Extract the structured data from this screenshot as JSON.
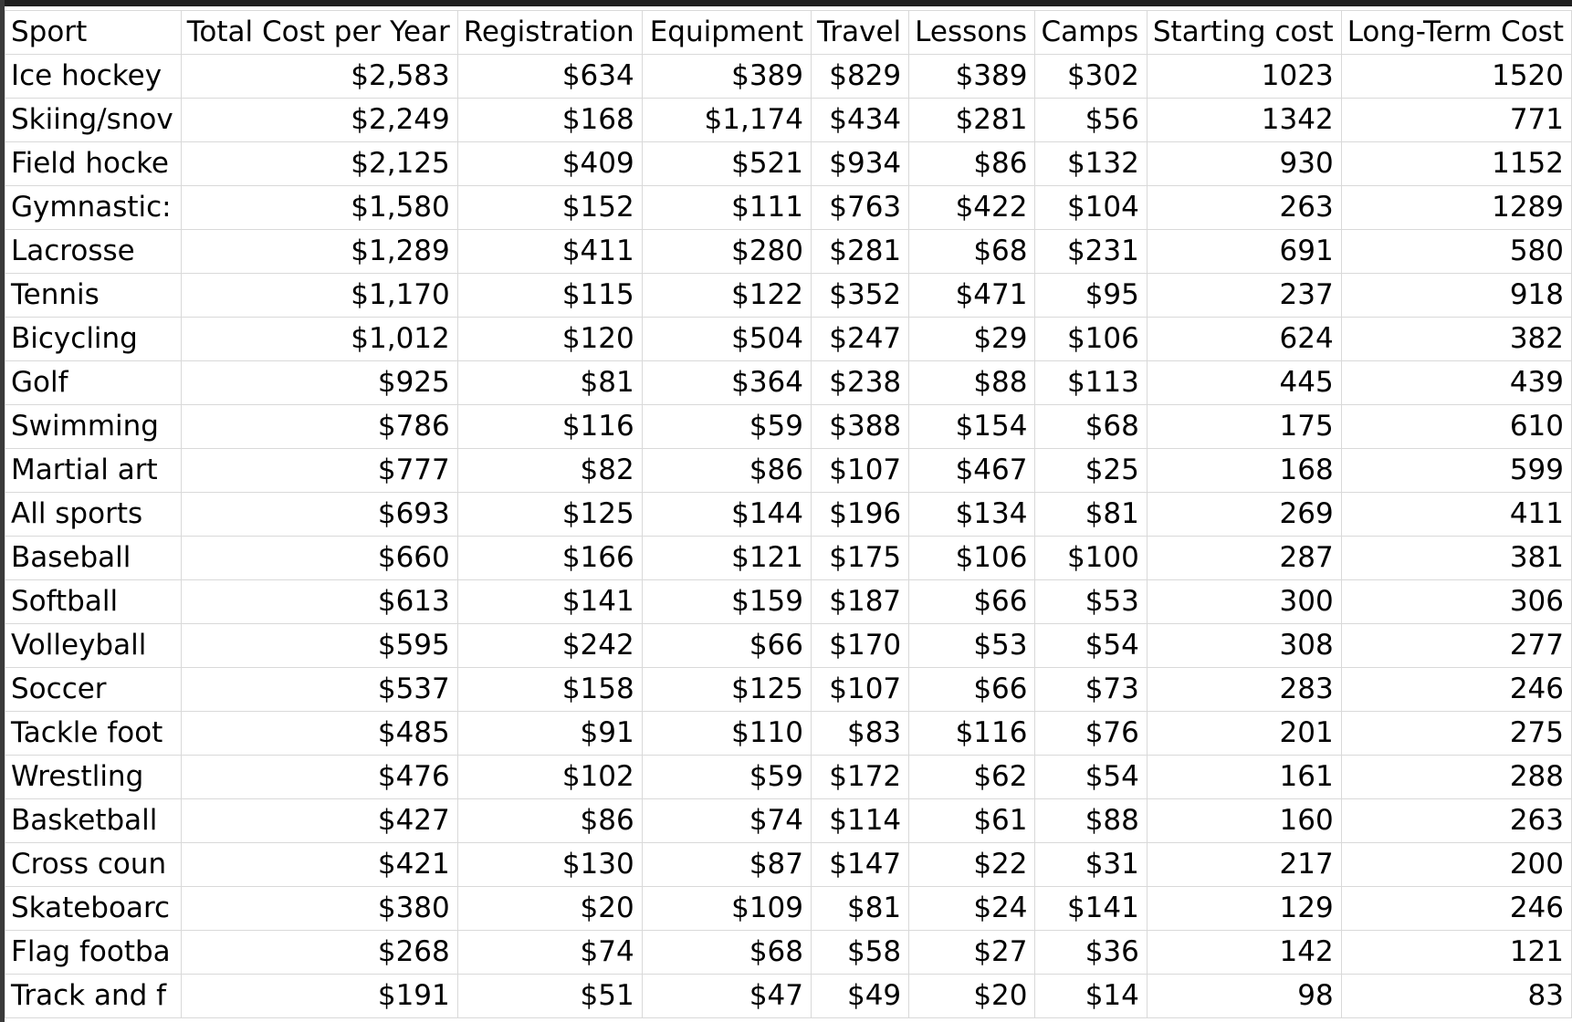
{
  "columns": [
    "Sport",
    "Total Cost per Year",
    "Registration",
    "Equipment",
    "Travel",
    "Lessons",
    "Camps",
    "Starting cost",
    "Long-Term Cost"
  ],
  "rows": [
    [
      "Ice hockey",
      "$2,583",
      "$634",
      "$389",
      "$829",
      "$389",
      "$302",
      "1023",
      "1520"
    ],
    [
      "Skiing/snov",
      "$2,249",
      "$168",
      "$1,174",
      "$434",
      "$281",
      "$56",
      "1342",
      "771"
    ],
    [
      "Field hocke",
      "$2,125",
      "$409",
      "$521",
      "$934",
      "$86",
      "$132",
      "930",
      "1152"
    ],
    [
      "Gymnastic:",
      "$1,580",
      "$152",
      "$111",
      "$763",
      "$422",
      "$104",
      "263",
      "1289"
    ],
    [
      "Lacrosse",
      "$1,289",
      "$411",
      "$280",
      "$281",
      "$68",
      "$231",
      "691",
      "580"
    ],
    [
      "Tennis",
      "$1,170",
      "$115",
      "$122",
      "$352",
      "$471",
      "$95",
      "237",
      "918"
    ],
    [
      "Bicycling",
      "$1,012",
      "$120",
      "$504",
      "$247",
      "$29",
      "$106",
      "624",
      "382"
    ],
    [
      "Golf",
      "$925",
      "$81",
      "$364",
      "$238",
      "$88",
      "$113",
      "445",
      "439"
    ],
    [
      "Swimming",
      "$786",
      "$116",
      "$59",
      "$388",
      "$154",
      "$68",
      "175",
      "610"
    ],
    [
      "Martial art",
      "$777",
      "$82",
      "$86",
      "$107",
      "$467",
      "$25",
      "168",
      "599"
    ],
    [
      "All sports",
      "$693",
      "$125",
      "$144",
      "$196",
      "$134",
      "$81",
      "269",
      "411"
    ],
    [
      "Baseball",
      "$660",
      "$166",
      "$121",
      "$175",
      "$106",
      "$100",
      "287",
      "381"
    ],
    [
      "Softball",
      "$613",
      "$141",
      "$159",
      "$187",
      "$66",
      "$53",
      "300",
      "306"
    ],
    [
      "Volleyball",
      "$595",
      "$242",
      "$66",
      "$170",
      "$53",
      "$54",
      "308",
      "277"
    ],
    [
      "Soccer",
      "$537",
      "$158",
      "$125",
      "$107",
      "$66",
      "$73",
      "283",
      "246"
    ],
    [
      "Tackle foot",
      "$485",
      "$91",
      "$110",
      "$83",
      "$116",
      "$76",
      "201",
      "275"
    ],
    [
      "Wrestling",
      "$476",
      "$102",
      "$59",
      "$172",
      "$62",
      "$54",
      "161",
      "288"
    ],
    [
      "Basketball",
      "$427",
      "$86",
      "$74",
      "$114",
      "$61",
      "$88",
      "160",
      "263"
    ],
    [
      "Cross coun",
      "$421",
      "$130",
      "$87",
      "$147",
      "$22",
      "$31",
      "217",
      "200"
    ],
    [
      "Skateboarc",
      "$380",
      "$20",
      "$109",
      "$81",
      "$24",
      "$141",
      "129",
      "246"
    ],
    [
      "Flag footba",
      "$268",
      "$74",
      "$68",
      "$58",
      "$27",
      "$36",
      "142",
      "121"
    ],
    [
      "Track and f",
      "$191",
      "$51",
      "$47",
      "$49",
      "$20",
      "$14",
      "98",
      "83"
    ]
  ]
}
